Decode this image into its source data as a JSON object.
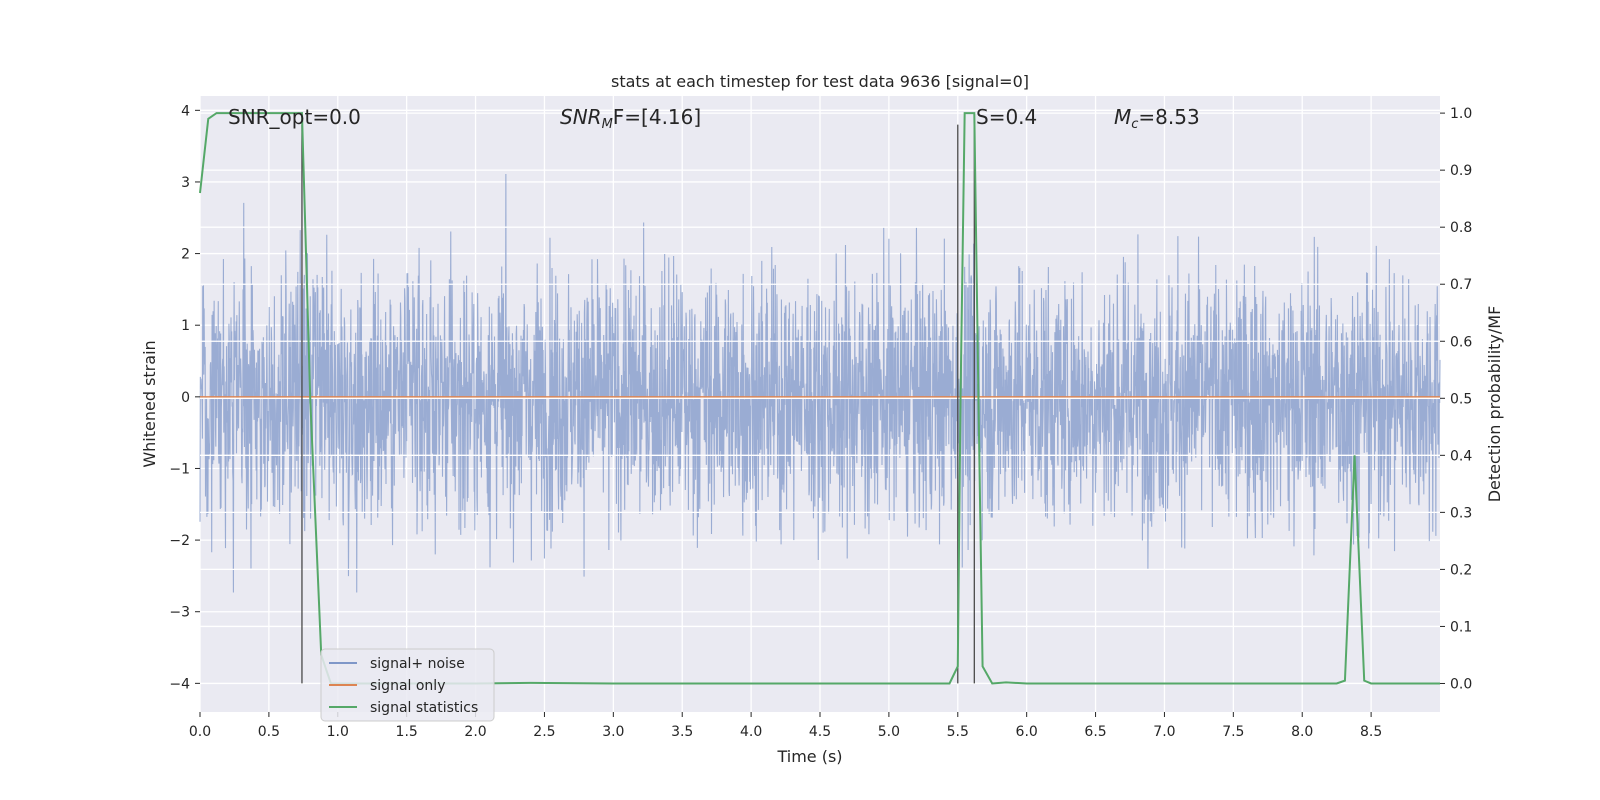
{
  "chart_data": {
    "type": "line",
    "title": "stats at each timestep for test data 9636 [signal=0]",
    "xlabel": "Time (s)",
    "ylabel_left": "Whitened strain",
    "ylabel_right": "Detection probability/MF",
    "xlim": [
      0.0,
      9.0
    ],
    "ylim_left": [
      -4.4,
      4.2
    ],
    "ylim_right": [
      -0.05,
      1.03
    ],
    "x_ticks": [
      "0.0",
      "0.5",
      "1.0",
      "1.5",
      "2.0",
      "2.5",
      "3.0",
      "3.5",
      "4.0",
      "4.5",
      "5.0",
      "5.5",
      "6.0",
      "6.5",
      "7.0",
      "7.5",
      "8.0",
      "8.5"
    ],
    "y_ticks_left": [
      "4",
      "3",
      "2",
      "1",
      "0",
      "−1",
      "−2",
      "−3",
      "−4"
    ],
    "y_ticks_right": [
      "1.0",
      "0.9",
      "0.8",
      "0.7",
      "0.6",
      "0.5",
      "0.4",
      "0.3",
      "0.2",
      "0.1",
      "0.0"
    ],
    "grid": true,
    "legend_position": "lower-left",
    "annotations": {
      "snr_opt": "SNR_opt=0.0",
      "snr_mf_base": "SNR",
      "snr_mf_sub": "M",
      "snr_mf_tail": "F=[4.16]",
      "s_stat": "S=0.4",
      "mc_base": "M",
      "mc_sub": "c",
      "mc_tail": "=8.53"
    },
    "series": [
      {
        "name": "signal+ noise",
        "color": "#7f97c8",
        "description_values": "random whitened noise, amplitude within about ±3.8, sampled densely over 0–9 s"
      },
      {
        "name": "signal only",
        "color": "#dd8452",
        "x": [
          0.0,
          9.0
        ],
        "y": [
          0.0,
          0.0
        ]
      },
      {
        "name": "signal statistics",
        "color": "#55a868",
        "axis": "right",
        "x": [
          0.0,
          0.06,
          0.12,
          0.25,
          0.5,
          0.7,
          0.74,
          0.8,
          0.88,
          0.95,
          1.2,
          2.0,
          2.4,
          3.0,
          4.0,
          5.0,
          5.44,
          5.5,
          5.52,
          5.55,
          5.62,
          5.65,
          5.68,
          5.75,
          5.85,
          6.0,
          7.0,
          8.0,
          8.25,
          8.31,
          8.38,
          8.45,
          8.5,
          9.0
        ],
        "y": [
          0.86,
          0.99,
          1.0,
          1.0,
          1.0,
          1.0,
          1.0,
          0.5,
          0.05,
          0.0,
          0.0,
          0.0,
          0.001,
          0.0,
          0.0,
          0.0,
          0.0,
          0.03,
          0.5,
          1.0,
          1.0,
          0.5,
          0.03,
          0.0,
          0.002,
          0.0,
          0.0,
          0.0,
          0.0,
          0.005,
          0.4,
          0.005,
          0.0,
          0.0
        ]
      }
    ],
    "vertical_markers_x": [
      0.74,
      5.5,
      5.62
    ]
  },
  "legend": {
    "items": [
      "signal+ noise",
      "signal only",
      "signal statistics"
    ]
  }
}
